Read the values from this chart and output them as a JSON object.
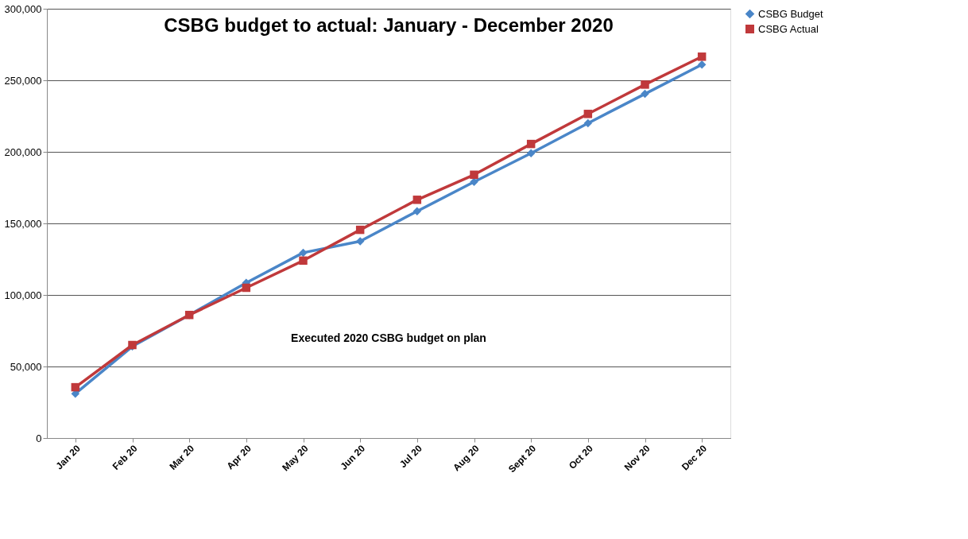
{
  "chart_data": {
    "type": "line",
    "title": "CSBG budget to actual: January - December 2020",
    "categories": [
      "Jan 20",
      "Feb 20",
      "Mar 20",
      "Apr 20",
      "May 20",
      "Jun 20",
      "Jul 20",
      "Aug 20",
      "Sept 20",
      "Oct 20",
      "Nov 20",
      "Dec 20"
    ],
    "series": [
      {
        "name": "CSBG Budget",
        "color": "#4a86c8",
        "marker": "diamond",
        "values": [
          31000,
          64000,
          86000,
          108500,
          129500,
          137500,
          158500,
          179000,
          199000,
          220000,
          240500,
          261000
        ]
      },
      {
        "name": "CSBG Actual",
        "color": "#c0393b",
        "marker": "square",
        "values": [
          35500,
          65000,
          86000,
          105000,
          124000,
          145500,
          166500,
          184000,
          205500,
          226500,
          247000,
          266500
        ]
      }
    ],
    "ylim": [
      0,
      300000
    ],
    "yticks": [
      {
        "value": 0,
        "label": "0"
      },
      {
        "value": 50000,
        "label": "50,000"
      },
      {
        "value": 100000,
        "label": "100,000"
      },
      {
        "value": 150000,
        "label": "150,000"
      },
      {
        "value": 200000,
        "label": "200,000"
      },
      {
        "value": 250000,
        "label": "250,000"
      },
      {
        "value": 300000,
        "label": "300,000"
      }
    ],
    "grid": "y",
    "legend": "right",
    "line_style": "solid",
    "annotations": [
      "Executed 2020 CSBG budget on plan"
    ]
  }
}
